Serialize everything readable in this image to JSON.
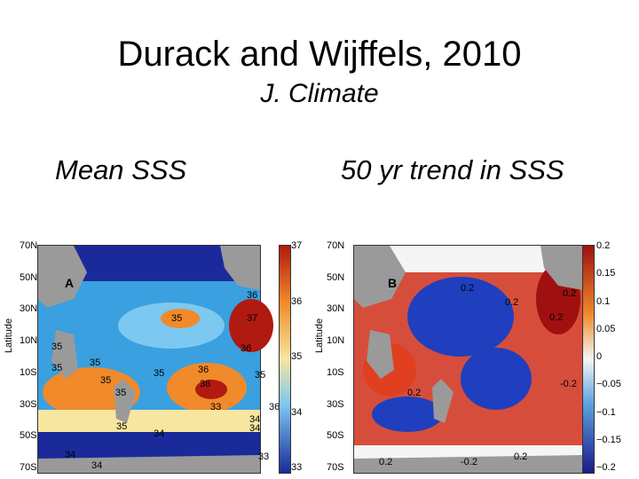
{
  "slide": {
    "title": "Durack and Wijffels, 2010",
    "subtitle": "J. Climate",
    "left_heading": "Mean SSS",
    "right_heading": "50 yr trend in SSS"
  },
  "panel_a": {
    "letter": "A",
    "ylabel": "Latitude",
    "lat_ticks": [
      "70N",
      "50N",
      "30N",
      "10N",
      "10S",
      "30S",
      "50S",
      "70S"
    ],
    "colorbar_ticks": [
      "37",
      "36",
      "35",
      "34",
      "33"
    ],
    "contour_labels": [
      "35",
      "35",
      "37",
      "36",
      "36",
      "35",
      "35",
      "35",
      "36",
      "36",
      "35",
      "35",
      "33",
      "36",
      "35",
      "34",
      "35",
      "34",
      "34",
      "34",
      "34",
      "33"
    ],
    "colors": {
      "high": "#b01a10",
      "mid_high": "#f08a2a",
      "mid": "#f7e6a0",
      "low": "#3aa0e0",
      "lowest": "#1a2a9a",
      "land": "#9a9a9a"
    }
  },
  "panel_b": {
    "letter": "B",
    "ylabel": "Latitude",
    "lat_ticks": [
      "70N",
      "50N",
      "30N",
      "10N",
      "10S",
      "30S",
      "50S",
      "70S"
    ],
    "colorbar_ticks": [
      "0.2",
      "0.15",
      "0.1",
      "0.05",
      "0",
      "−0.05",
      "−0.1",
      "−0.15",
      "−0.2"
    ],
    "contour_labels": [
      "0.2",
      "0.2",
      "0.2",
      "0.2",
      "0.2",
      "0.2",
      "-0.2",
      "0.2",
      "-0.2"
    ],
    "colors": {
      "positive": "#d0301a",
      "negative": "#1f3fbf",
      "neutral": "#f5f5f5",
      "land": "#9a9a9a"
    }
  }
}
